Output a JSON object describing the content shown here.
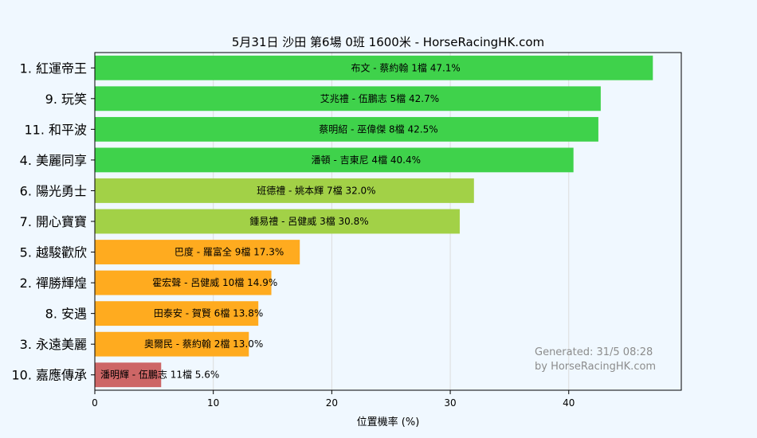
{
  "chart_data": {
    "type": "bar",
    "orientation": "horizontal",
    "title": "5月31日  沙田  第6場  0班  1600米 - HorseRacingHK.com",
    "xlabel": "位置機率 (%)",
    "ylabel": "",
    "xlim": [
      0,
      49.5
    ],
    "xticks": [
      "0",
      "10",
      "20",
      "30",
      "40"
    ],
    "grid": "vertical",
    "categories": [
      "1. 紅運帝王",
      "9. 玩笑",
      "11. 和平波",
      "4. 美麗同享",
      "6. 陽光勇士",
      "7. 開心寶寶",
      "5. 越駿歡欣",
      "2. 禪勝輝煌",
      "8. 安遇",
      "3. 永遠美麗",
      "10. 嘉應傳承"
    ],
    "values": [
      47.1,
      42.7,
      42.5,
      40.4,
      32.0,
      30.8,
      17.3,
      14.9,
      13.8,
      13.0,
      5.6
    ],
    "bar_labels": [
      "布文 - 蔡約翰 1檔  47.1%",
      "艾兆禮 - 伍鵬志 5檔  42.7%",
      "蔡明紹 - 巫偉傑 8檔  42.5%",
      "潘頓 - 吉東尼 4檔  40.4%",
      "班德禮 - 姚本輝 7檔  32.0%",
      "鍾易禮 - 呂健威 3檔  30.8%",
      "巴度 - 羅富全 9檔  17.3%",
      "霍宏聲 - 呂健威 10檔  14.9%",
      "田泰安 - 賀賢 6檔  13.8%",
      "奧爾民 - 蔡約翰 2檔  13.0%",
      "潘明輝 - 伍鵬志 11檔  5.6%"
    ],
    "colors": [
      "#3fd24b",
      "#3fd24b",
      "#3fd24b",
      "#3fd24b",
      "#a2d147",
      "#a2d147",
      "#ffab1f",
      "#ffab1f",
      "#ffab1f",
      "#ffab1f",
      "#cd6666"
    ],
    "annotation": [
      "Generated: 31/5 08:28",
      "by HorseRacingHK.com"
    ]
  }
}
